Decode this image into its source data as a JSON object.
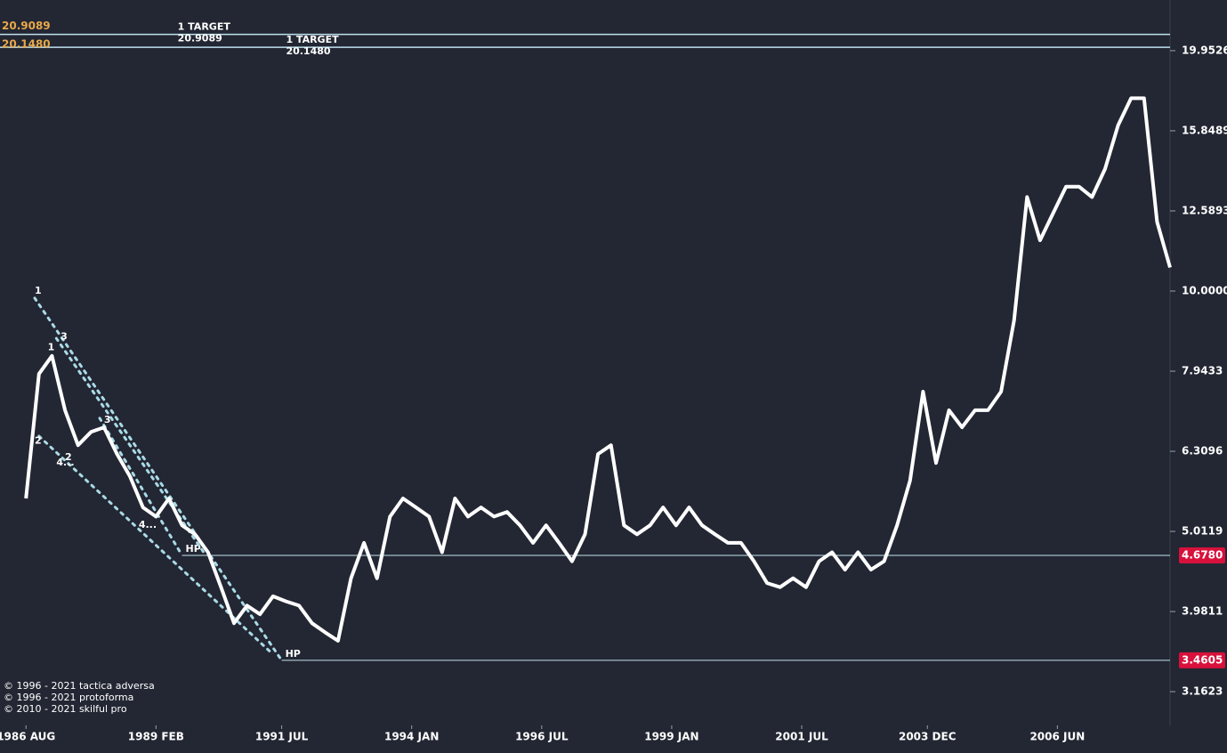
{
  "chart_data": {
    "type": "line",
    "log_scale": true,
    "xlim": [
      "1986-02",
      "2008-08"
    ],
    "ylim": [
      2.87,
      23.08
    ],
    "yticks": [
      {
        "value": 3.1623,
        "label": "3.1623"
      },
      {
        "value": 3.9811,
        "label": "3.9811"
      },
      {
        "value": 5.0119,
        "label": "5.0119"
      },
      {
        "value": 6.3096,
        "label": "6.3096"
      },
      {
        "value": 7.9433,
        "label": "7.9433"
      },
      {
        "value": 10,
        "label": "10.0000"
      },
      {
        "value": 12.5893,
        "label": "12.5893"
      },
      {
        "value": 15.8489,
        "label": "15.8489"
      },
      {
        "value": 19.9526,
        "label": "19.9526"
      }
    ],
    "xticks": [
      {
        "value": "1986-08",
        "label": "1986 AUG"
      },
      {
        "value": "1989-02",
        "label": "1989 FEB"
      },
      {
        "value": "1991-07",
        "label": "1991 JUL"
      },
      {
        "value": "1994-01",
        "label": "1994 JAN"
      },
      {
        "value": "1996-07",
        "label": "1996 JUL"
      },
      {
        "value": "1999-01",
        "label": "1999 JAN"
      },
      {
        "value": "2001-07",
        "label": "2001 JUL"
      },
      {
        "value": "2003-12",
        "label": "2003 DEC"
      },
      {
        "value": "2006-06",
        "label": "2006 JUN"
      }
    ],
    "x": [
      "1986-08",
      "1986-11",
      "1987-02",
      "1987-05",
      "1987-08",
      "1987-11",
      "1988-02",
      "1988-05",
      "1988-08",
      "1988-11",
      "1989-02",
      "1989-05",
      "1989-08",
      "1989-11",
      "1990-02",
      "1990-05",
      "1990-08",
      "1990-11",
      "1991-02",
      "1991-05",
      "1991-08",
      "1991-11",
      "1992-02",
      "1992-05",
      "1992-08",
      "1992-11",
      "1993-02",
      "1993-05",
      "1993-08",
      "1993-11",
      "1994-02",
      "1994-05",
      "1994-08",
      "1994-11",
      "1995-02",
      "1995-05",
      "1995-08",
      "1995-11",
      "1996-02",
      "1996-05",
      "1996-08",
      "1996-11",
      "1997-02",
      "1997-05",
      "1997-08",
      "1997-11",
      "1998-02",
      "1998-05",
      "1998-08",
      "1998-11",
      "1999-02",
      "1999-05",
      "1999-08",
      "1999-11",
      "2000-02",
      "2000-05",
      "2000-08",
      "2000-11",
      "2001-02",
      "2001-05",
      "2001-08",
      "2001-11",
      "2002-02",
      "2002-05",
      "2002-08",
      "2002-11",
      "2003-02",
      "2003-05",
      "2003-08",
      "2003-11",
      "2004-02",
      "2004-05",
      "2004-08",
      "2004-11",
      "2005-02",
      "2005-05",
      "2005-08",
      "2005-11",
      "2006-02",
      "2006-05",
      "2006-08",
      "2006-11",
      "2007-02",
      "2007-05",
      "2007-08",
      "2007-11",
      "2008-02",
      "2008-05",
      "2008-08"
    ],
    "series": [
      {
        "color": "#ffffff",
        "values": [
          5.51,
          7.88,
          8.3,
          7.1,
          6.42,
          6.67,
          6.76,
          6.26,
          5.87,
          5.37,
          5.23,
          5.51,
          5.1,
          4.97,
          4.72,
          4.27,
          3.85,
          4.05,
          3.95,
          4.16,
          4.1,
          4.05,
          3.85,
          3.75,
          3.66,
          4.38,
          4.85,
          4.38,
          5.23,
          5.51,
          5.37,
          5.23,
          4.72,
          5.51,
          5.23,
          5.37,
          5.23,
          5.3,
          5.1,
          4.85,
          5.1,
          4.85,
          4.6,
          4.97,
          6.26,
          6.42,
          5.1,
          4.97,
          5.1,
          5.37,
          5.1,
          5.37,
          5.1,
          4.97,
          4.85,
          4.85,
          4.6,
          4.32,
          4.27,
          4.38,
          4.27,
          4.6,
          4.72,
          4.49,
          4.72,
          4.49,
          4.6,
          5.1,
          5.8,
          7.49,
          6.1,
          7.1,
          6.76,
          7.1,
          7.1,
          7.49,
          9.19,
          13.1,
          11.57,
          12.5,
          13.5,
          13.5,
          13.1,
          14.2,
          16.1,
          17.4,
          17.4,
          12.2,
          10.7
        ]
      }
    ],
    "targets": [
      {
        "label": "1 TARGET",
        "value": 20.9089,
        "value_label": "20.9089",
        "x": "1989-07"
      },
      {
        "label": "1 TARGET",
        "value": 20.148,
        "value_label": "20.1480",
        "x": "1991-08"
      }
    ],
    "levels": [
      {
        "label": "HP",
        "value": 4.678,
        "value_label": "4.6780",
        "x": "1989-08"
      },
      {
        "label": "HP",
        "value": 3.4605,
        "value_label": "3.4605",
        "x": "1991-07"
      }
    ],
    "trendlines": [
      {
        "x": [
          "1986-10",
          "1991-07"
        ],
        "y": [
          9.8,
          3.46
        ]
      },
      {
        "x": [
          "1987-03",
          "1990-01"
        ],
        "y": [
          8.73,
          4.72
        ]
      },
      {
        "x": [
          "1988-01",
          "1989-08"
        ],
        "y": [
          6.94,
          4.68
        ]
      },
      {
        "x": [
          "1986-11",
          "1991-05"
        ],
        "y": [
          6.59,
          3.52
        ]
      }
    ],
    "wave_labels": [
      {
        "label": "1",
        "x": "1986-10",
        "y": 10.0
      },
      {
        "label": "3",
        "x": "1987-04",
        "y": 8.77
      },
      {
        "label": "1",
        "x": "1987-01",
        "y": 8.5
      },
      {
        "label": "2",
        "x": "1986-10",
        "y": 6.5
      },
      {
        "label": "4...",
        "x": "1987-03",
        "y": 6.1
      },
      {
        "label": "2",
        "x": "1987-05",
        "y": 6.2
      },
      {
        "label": "3",
        "x": "1988-02",
        "y": 6.9
      },
      {
        "label": "4...",
        "x": "1988-10",
        "y": 5.1
      }
    ],
    "footer": [
      "© 1996 - 2021 tactica adversa",
      "© 1996 - 2021 protoforma",
      "© 2010 - 2021 skilful pro"
    ]
  }
}
